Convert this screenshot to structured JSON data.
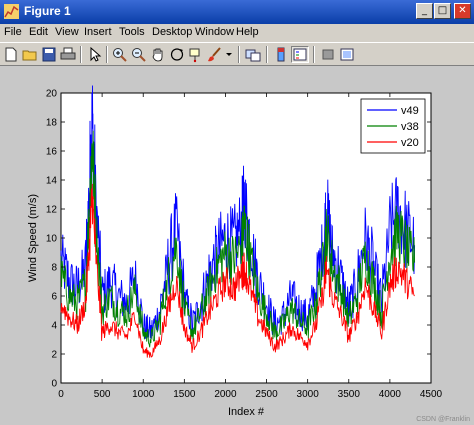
{
  "window": {
    "title": "Figure 1",
    "buttons": {
      "minimize": "_",
      "maximize": "□",
      "close": "✕"
    }
  },
  "menu": {
    "items": [
      "File",
      "Edit",
      "View",
      "Insert",
      "Tools",
      "Desktop",
      "Window",
      "Help"
    ]
  },
  "toolbar": {
    "tools": [
      "new-figure-icon",
      "open-file-icon",
      "save-icon",
      "print-icon",
      "edit-plot-arrow-icon",
      "zoom-in-icon",
      "zoom-out-icon",
      "pan-hand-icon",
      "rotate-3d-icon",
      "data-cursor-icon",
      "brush-icon",
      "link-plot-icon",
      "colorbar-icon",
      "legend-icon",
      "hide-plot-tools-icon",
      "show-plot-tools-icon"
    ]
  },
  "chart_data": {
    "type": "line",
    "xlabel": "Index #",
    "ylabel": "Wind Speed (m/s)",
    "xlim": [
      0,
      4500
    ],
    "ylim": [
      0,
      20
    ],
    "xticks": [
      "0",
      "500",
      "1000",
      "1500",
      "2000",
      "2500",
      "3000",
      "3500",
      "4000",
      "4500"
    ],
    "yticks": [
      "0",
      "2",
      "4",
      "6",
      "8",
      "10",
      "12",
      "14",
      "16",
      "18",
      "20"
    ],
    "grid": false,
    "legend_position": "top-right",
    "x": [
      0,
      100,
      200,
      300,
      350,
      380,
      420,
      500,
      600,
      700,
      800,
      900,
      1000,
      1100,
      1200,
      1300,
      1400,
      1500,
      1600,
      1700,
      1800,
      1900,
      2000,
      2100,
      2200,
      2230,
      2300,
      2400,
      2500,
      2600,
      2700,
      2800,
      2900,
      3000,
      3100,
      3200,
      3230,
      3300,
      3400,
      3500,
      3600,
      3700,
      3800,
      3900,
      4000,
      4100,
      4200,
      4300
    ],
    "series": [
      {
        "name": "v49",
        "color": "#0000ff",
        "values": [
          8.5,
          7.0,
          6.5,
          8.0,
          14.0,
          18.0,
          13.0,
          6.0,
          7.0,
          6.0,
          5.5,
          7.5,
          4.0,
          3.5,
          5.0,
          8.0,
          11.0,
          6.0,
          4.0,
          5.5,
          7.5,
          9.0,
          10.0,
          9.5,
          11.0,
          12.5,
          10.0,
          7.0,
          5.5,
          4.0,
          4.5,
          6.0,
          5.0,
          4.5,
          6.5,
          10.0,
          12.0,
          9.0,
          7.5,
          5.0,
          7.0,
          10.0,
          8.0,
          5.5,
          10.5,
          12.0,
          10.5,
          9.5
        ]
      },
      {
        "name": "v38",
        "color": "#008000",
        "values": [
          7.5,
          6.0,
          5.5,
          7.0,
          12.5,
          16.5,
          11.5,
          5.0,
          6.0,
          5.0,
          4.8,
          6.5,
          3.5,
          3.0,
          4.3,
          7.0,
          9.5,
          5.2,
          3.5,
          4.8,
          6.5,
          8.0,
          9.0,
          8.5,
          9.5,
          11.0,
          8.8,
          6.0,
          4.8,
          3.5,
          4.0,
          5.2,
          4.3,
          3.8,
          5.5,
          8.8,
          10.5,
          8.0,
          6.5,
          4.3,
          6.0,
          8.8,
          7.0,
          4.8,
          9.0,
          10.5,
          9.2,
          8.3
        ]
      },
      {
        "name": "v20",
        "color": "#ff0000",
        "values": [
          5.5,
          4.5,
          4.0,
          5.5,
          10.0,
          13.0,
          9.0,
          3.5,
          4.0,
          3.5,
          3.2,
          4.8,
          2.2,
          2.0,
          3.0,
          5.0,
          7.0,
          3.8,
          2.5,
          3.5,
          4.8,
          6.0,
          7.0,
          6.5,
          7.5,
          8.0,
          6.5,
          4.5,
          3.5,
          2.5,
          3.0,
          3.8,
          3.2,
          2.8,
          4.0,
          6.5,
          8.0,
          6.0,
          4.8,
          3.2,
          4.5,
          6.8,
          5.2,
          3.5,
          6.8,
          8.0,
          7.0,
          6.0
        ]
      }
    ]
  },
  "watermark": "CSDN @Franklin"
}
